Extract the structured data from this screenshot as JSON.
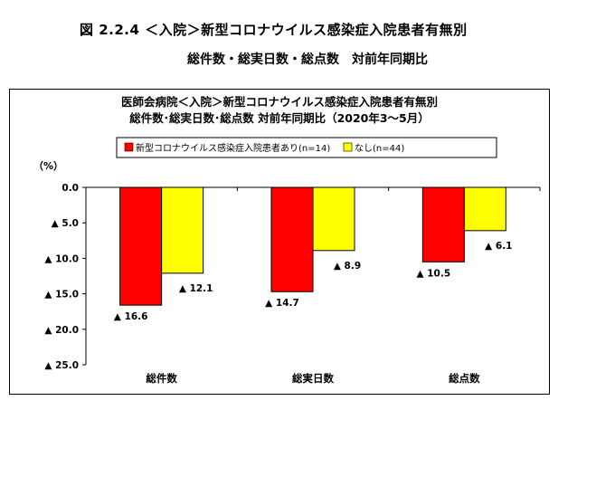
{
  "figure": {
    "title": "図 2.2.4 ＜入院＞新型コロナウイルス感染症入院患者有無別",
    "subtitle": "総件数・総実日数・総点数　対前年同期比"
  },
  "chart_data": {
    "type": "bar",
    "title": "医師会病院＜入院＞新型コロナウイルス感染症入院患者有無別",
    "subtitle": "総件数･総実日数･総点数 対前年同期比（2020年3～5月）",
    "ylabel": "（%）",
    "categories": [
      "総件数",
      "総実日数",
      "総点数"
    ],
    "series": [
      {
        "name": "新型コロナウイルス感染症入院患者あり(n=14)",
        "color": "#ff0000",
        "values": [
          -16.6,
          -14.7,
          -10.5
        ],
        "labels": [
          "▲ 16.6",
          "▲ 14.7",
          "▲ 10.5"
        ]
      },
      {
        "name": "なし(n=44)",
        "color": "#ffff00",
        "values": [
          -12.1,
          -8.9,
          -6.1
        ],
        "labels": [
          "▲ 12.1",
          "▲ 8.9",
          "▲ 6.1"
        ]
      }
    ],
    "ylim": [
      -25,
      0
    ],
    "yticks": [
      0,
      -5,
      -10,
      -15,
      -20,
      -25
    ],
    "ytick_labels": [
      "0.0",
      "▲ 5.0",
      "▲ 10.0",
      "▲ 15.0",
      "▲ 20.0",
      "▲ 25.0"
    ],
    "grid": false,
    "legend_position": "top"
  }
}
